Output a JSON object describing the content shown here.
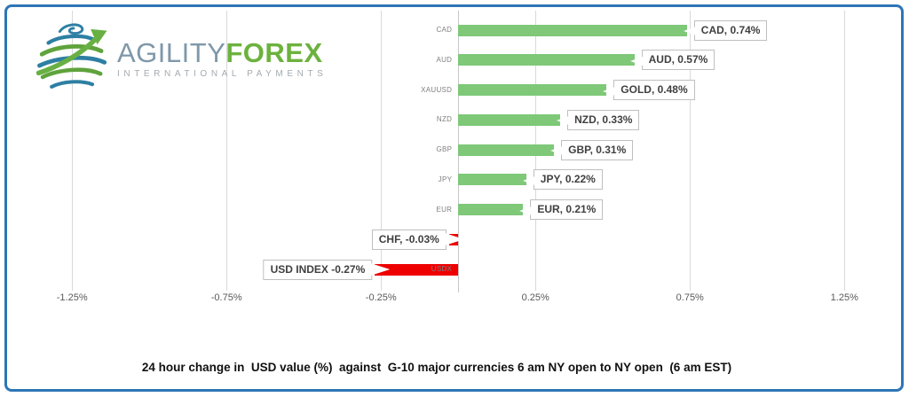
{
  "logo": {
    "brand_primary": "AGILITY",
    "brand_secondary": "FOREX",
    "tagline": "INTERNATIONAL PAYMENTS",
    "icon": "globe-arrow-icon",
    "colors": {
      "primary_text": "#7f98a9",
      "secondary_text": "#6cb23e",
      "tagline_text": "#a3abb0",
      "globe_blue": "#2e7fa3",
      "globe_green": "#68b043"
    }
  },
  "frame": {
    "border_color": "#2e75b6"
  },
  "chart_data": {
    "type": "bar",
    "orientation": "horizontal",
    "title": "",
    "caption": "24 hour change in  USD value (%)  against  G-10 major currencies 6 am NY open to NY open  (6 am EST)",
    "categories": [
      "CAD",
      "AUD",
      "XAUUSD",
      "NZD",
      "GBP",
      "JPY",
      "EUR",
      "CHF",
      "USDX"
    ],
    "series": [
      {
        "name": "24 hour % change in USD value",
        "values": [
          0.74,
          0.57,
          0.48,
          0.33,
          0.31,
          0.22,
          0.21,
          -0.03,
          -0.27
        ]
      }
    ],
    "data_labels": [
      "CAD, 0.74%",
      "AUD, 0.57%",
      "GOLD, 0.48%",
      "NZD, 0.33%",
      "GBP, 0.31%",
      "JPY, 0.22%",
      "EUR, 0.21%",
      "CHF, -0.03%",
      "USD INDEX -0.27%"
    ],
    "x_ticks": [
      {
        "label": "-1.25%",
        "value": -1.25
      },
      {
        "label": "-0.75%",
        "value": -0.75
      },
      {
        "label": "-0.25%",
        "value": -0.25
      },
      {
        "label": "0.25%",
        "value": 0.25
      },
      {
        "label": "0.75%",
        "value": 0.75
      },
      {
        "label": "1.25%",
        "value": 1.25
      }
    ],
    "axis": {
      "min": -1.4,
      "max": 1.39,
      "zero": 0
    },
    "grid": true,
    "legend_position": "none",
    "colors": {
      "positive_bar": "#7ec878",
      "negative_bar": "#ee0000",
      "gridline": "#d9d9d9",
      "zero_line": "#c6c6c6",
      "tick_text": "#595959",
      "category_text": "#7f7f7f",
      "callout_border": "#bfbfbf",
      "callout_text": "#3f3f3f"
    }
  }
}
